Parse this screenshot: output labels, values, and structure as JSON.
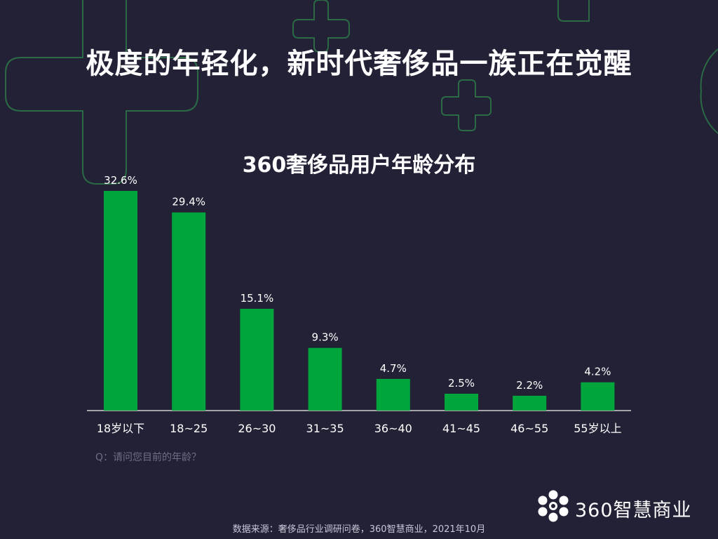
{
  "header": {
    "title": "极度的年轻化，新时代奢侈品一族正在觉醒"
  },
  "chart_data": {
    "type": "bar",
    "title": "360奢侈品用户年龄分布",
    "categories": [
      "18岁以下",
      "18~25",
      "26~30",
      "31~35",
      "36~40",
      "41~45",
      "46~55",
      "55岁以上"
    ],
    "values": [
      32.6,
      29.4,
      15.1,
      9.3,
      4.7,
      2.5,
      2.2,
      4.2
    ],
    "value_labels": [
      "32.6%",
      "29.4%",
      "15.1%",
      "9.3%",
      "4.7%",
      "2.5%",
      "2.2%",
      "4.2%"
    ],
    "unit": "%",
    "xlabel": "",
    "ylabel": "",
    "ylim": [
      0,
      32.6
    ],
    "grid": false,
    "bar_color": "#00a63c"
  },
  "question_note": "Q：请问您目前的年龄？",
  "logo": {
    "text": "360智慧商业"
  },
  "source": "数据来源：奢侈品行业调研问卷，360智慧商业，2021年10月",
  "colors": {
    "background": "#222136",
    "deco_outline": "#2b6a45",
    "axis": "#d0d0d0"
  }
}
